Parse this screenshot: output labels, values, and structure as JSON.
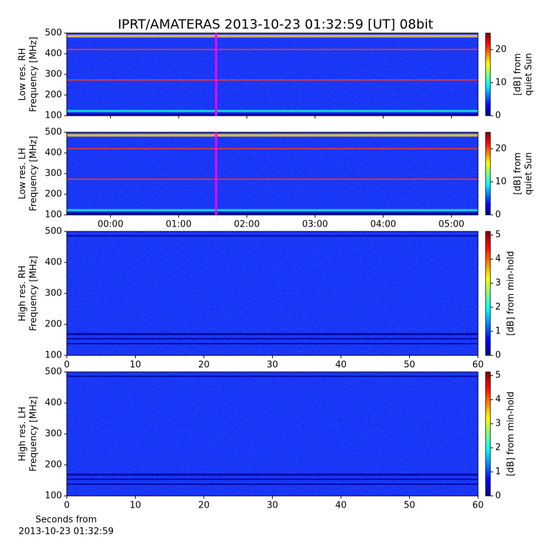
{
  "title": "IPRT/AMATERAS 2013-10-23 01:32:59 [UT]   08bit",
  "chart_data": [
    {
      "type": "heatmap",
      "ylabel": [
        "Low res. RH",
        "Frequency [MHz]"
      ],
      "ylim": [
        100,
        500
      ],
      "yticks": [
        100,
        200,
        300,
        400,
        500
      ],
      "xlim": [
        -0.64,
        5.39
      ],
      "xticks": [
        0,
        1,
        2,
        3,
        4,
        5
      ],
      "marker": {
        "x": 1.5497,
        "color": "#ff00ff"
      },
      "colormap": "jet",
      "colorbar": {
        "label": [
          "[dB] from",
          "quiet Sun"
        ],
        "lim": [
          0,
          25
        ],
        "ticks": [
          0,
          10,
          20
        ]
      }
    },
    {
      "type": "heatmap",
      "ylabel": [
        "Low res. LH",
        "Frequency [MHz]"
      ],
      "ylim": [
        100,
        500
      ],
      "yticks": [
        100,
        200,
        300,
        400,
        500
      ],
      "xlim": [
        -0.64,
        5.39
      ],
      "xticks": [
        {
          "value": 0,
          "label": "00:00"
        },
        {
          "value": 1,
          "label": "01:00"
        },
        {
          "value": 2,
          "label": "02:00"
        },
        {
          "value": 3,
          "label": "03:00"
        },
        {
          "value": 4,
          "label": "04:00"
        },
        {
          "value": 5,
          "label": "05:00"
        }
      ],
      "marker": {
        "x": 1.5497,
        "color": "#ff00ff"
      },
      "colormap": "jet",
      "colorbar": {
        "label": [
          "[dB] from",
          "quiet Sun"
        ],
        "lim": [
          0,
          25
        ],
        "ticks": [
          0,
          10,
          20
        ]
      }
    },
    {
      "type": "heatmap",
      "ylabel": [
        "High res. RH",
        "Frequency [MHz]"
      ],
      "ylim": [
        100,
        500
      ],
      "yticks": [
        100,
        200,
        300,
        400,
        500
      ],
      "xlim": [
        0,
        60
      ],
      "xticks": [
        0,
        10,
        20,
        30,
        40,
        50,
        60
      ],
      "colormap": "jet",
      "colorbar": {
        "label": [
          "[dB] from min-hold"
        ],
        "lim": [
          0,
          5.15
        ],
        "ticks": [
          0,
          1,
          2,
          3,
          4,
          5
        ]
      }
    },
    {
      "type": "heatmap",
      "ylabel": [
        "High res. LH",
        "Frequency [MHz]"
      ],
      "ylim": [
        100,
        500
      ],
      "yticks": [
        100,
        200,
        300,
        400,
        500
      ],
      "xlim": [
        0,
        60
      ],
      "xticks": [
        0,
        10,
        20,
        30,
        40,
        50,
        60
      ],
      "xlabel": [
        "Seconds from",
        "2013-10-23 01:32:59"
      ],
      "colormap": "jet",
      "colorbar": {
        "label": [
          "[dB] from min-hold"
        ],
        "lim": [
          0,
          5.15
        ],
        "ticks": [
          0,
          1,
          2,
          3,
          4,
          5
        ]
      }
    }
  ]
}
